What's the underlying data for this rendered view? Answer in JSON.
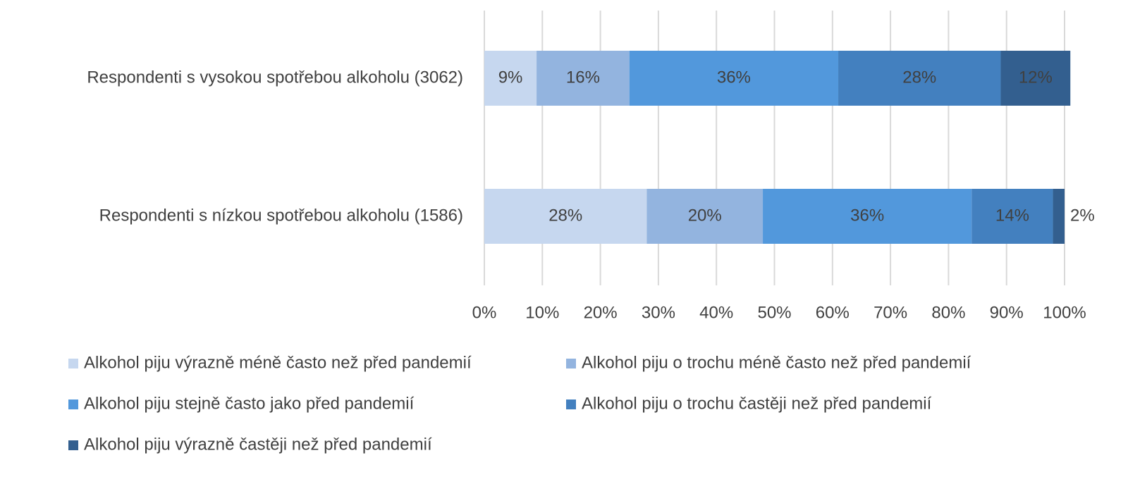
{
  "chart_data": {
    "type": "stacked-bar-horizontal",
    "categories": [
      "Respondenti s vysokou spotřebou alkoholu (3062)",
      "Respondenti s nízkou spotřebou alkoholu (1586)"
    ],
    "series": [
      {
        "name": "Alkohol piju výrazně méně často než před pandemií",
        "color": "#c6d7ef",
        "values": [
          9,
          28
        ],
        "value_labels": [
          "9%",
          "28%"
        ]
      },
      {
        "name": "Alkohol piju o trochu méně často než před pandemií",
        "color": "#93b4df",
        "values": [
          16,
          20
        ],
        "value_labels": [
          "16%",
          "20%"
        ]
      },
      {
        "name": "Alkohol piju stejně často jako před pandemií",
        "color": "#5298dc",
        "values": [
          36,
          36
        ],
        "value_labels": [
          "36%",
          "36%"
        ]
      },
      {
        "name": "Alkohol piju o trochu častěji než před pandemií",
        "color": "#4380bf",
        "values": [
          28,
          14
        ],
        "value_labels": [
          "28%",
          "14%"
        ]
      },
      {
        "name": "Alkohol piju výrazně častěji než před pandemií",
        "color": "#335f8f",
        "values": [
          12,
          2
        ],
        "value_labels": [
          "12%",
          "2%"
        ]
      }
    ],
    "xlim": [
      0,
      100
    ],
    "xticks": [
      {
        "value": 0,
        "label": "0%"
      },
      {
        "value": 10,
        "label": "10%"
      },
      {
        "value": 20,
        "label": "20%"
      },
      {
        "value": 30,
        "label": "30%"
      },
      {
        "value": 40,
        "label": "40%"
      },
      {
        "value": 50,
        "label": "50%"
      },
      {
        "value": 60,
        "label": "60%"
      },
      {
        "value": 70,
        "label": "70%"
      },
      {
        "value": 80,
        "label": "80%"
      },
      {
        "value": 90,
        "label": "90%"
      },
      {
        "value": 100,
        "label": "100%"
      }
    ],
    "grid": true,
    "legend": "bottom"
  }
}
